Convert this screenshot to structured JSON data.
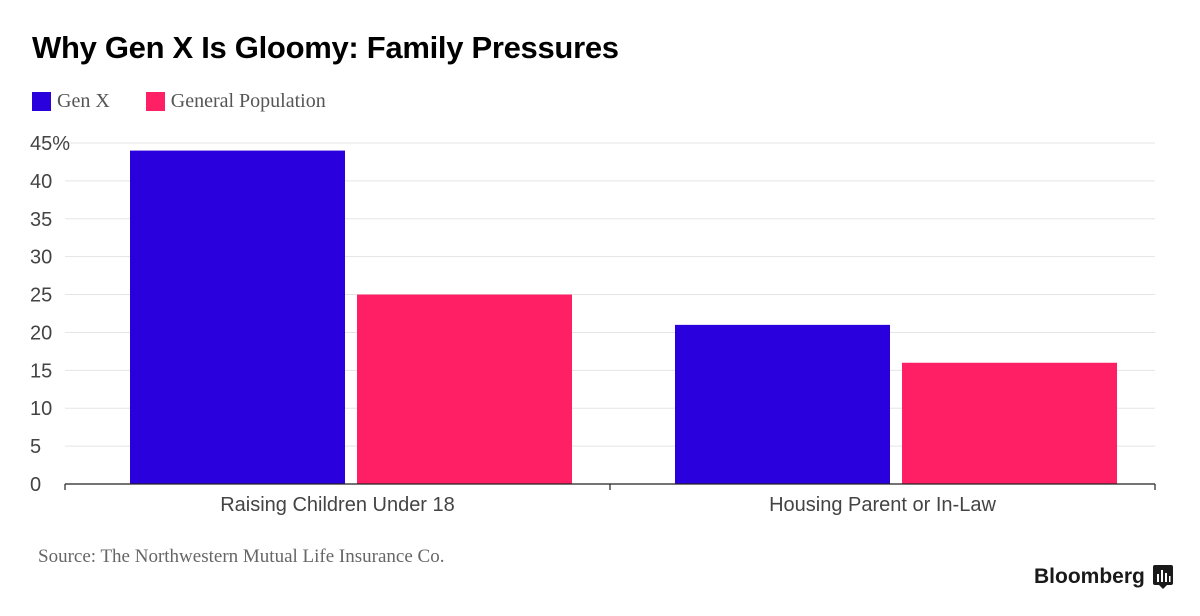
{
  "title": "Why Gen X Is Gloomy: Family Pressures",
  "source": "Source: The Northwestern Mutual Life Insurance Co.",
  "brand": "Bloomberg",
  "colors": {
    "gen_x": "#2a00dd",
    "general_population": "#ff1f65",
    "grid": "#e5e5e5",
    "axis": "#222222"
  },
  "chart_data": {
    "type": "bar",
    "title": "Why Gen X Is Gloomy: Family Pressures",
    "categories": [
      "Raising Children Under 18",
      "Housing Parent or In-Law"
    ],
    "series": [
      {
        "name": "Gen X",
        "values": [
          44,
          21
        ]
      },
      {
        "name": "General Population",
        "values": [
          25,
          16
        ]
      }
    ],
    "ylim": [
      0,
      45
    ],
    "yticks": [
      0,
      5,
      10,
      15,
      20,
      25,
      30,
      35,
      40,
      45
    ],
    "ytick_labels": [
      "0",
      "5",
      "10",
      "15",
      "20",
      "25",
      "30",
      "35",
      "40",
      "45%"
    ],
    "xlabel": "",
    "ylabel": "",
    "grid": true,
    "legend": "top-left"
  }
}
